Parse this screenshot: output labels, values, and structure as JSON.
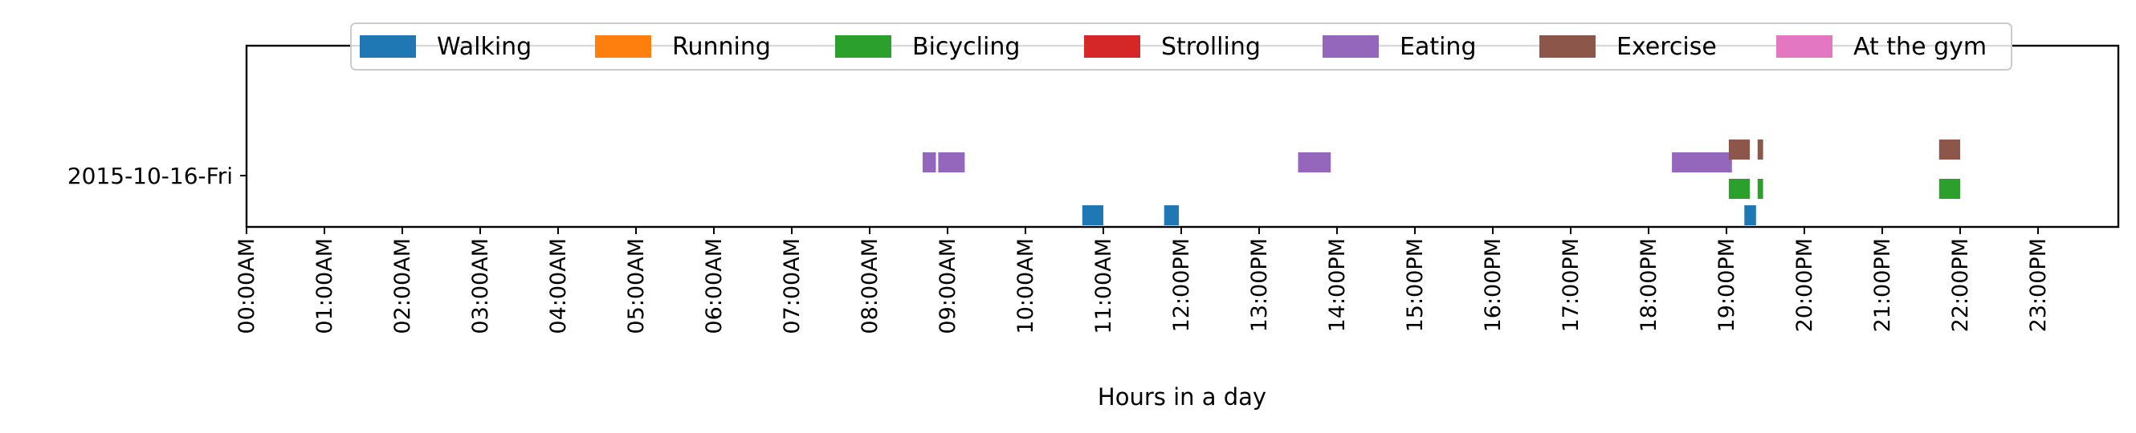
{
  "chart_data": {
    "type": "timeline",
    "title": "",
    "xlabel": "Hours in a day",
    "ylabel": "",
    "xlim": [
      0,
      24
    ],
    "grid": false,
    "legend_placement": "top-center",
    "row_label": "2015-10-16-Fri",
    "x_ticks": [
      "00:00AM",
      "01:00AM",
      "02:00AM",
      "03:00AM",
      "04:00AM",
      "05:00AM",
      "06:00AM",
      "07:00AM",
      "08:00AM",
      "09:00AM",
      "10:00AM",
      "11:00AM",
      "12:00PM",
      "13:00PM",
      "14:00PM",
      "15:00PM",
      "16:00PM",
      "17:00PM",
      "18:00PM",
      "19:00PM",
      "20:00PM",
      "21:00PM",
      "22:00PM",
      "23:00PM"
    ],
    "categories": [
      {
        "name": "Walking",
        "color": "#1f77b4"
      },
      {
        "name": "Running",
        "color": "#ff7f0e"
      },
      {
        "name": "Bicycling",
        "color": "#2ca02c"
      },
      {
        "name": "Strolling",
        "color": "#d62728"
      },
      {
        "name": "Eating",
        "color": "#9467bd"
      },
      {
        "name": "Exercise",
        "color": "#8c564b"
      },
      {
        "name": "At the gym",
        "color": "#e377c2"
      }
    ],
    "series": [
      {
        "name": "Walking",
        "intervals": [
          [
            10.73,
            11.0
          ],
          [
            11.78,
            11.97
          ],
          [
            19.23,
            19.38
          ]
        ]
      },
      {
        "name": "Running",
        "intervals": []
      },
      {
        "name": "Bicycling",
        "intervals": [
          [
            19.03,
            19.3
          ],
          [
            19.4,
            19.47
          ],
          [
            21.73,
            22.0
          ]
        ]
      },
      {
        "name": "Strolling",
        "intervals": []
      },
      {
        "name": "Eating",
        "intervals": [
          [
            8.68,
            8.85
          ],
          [
            8.88,
            9.22
          ],
          [
            13.5,
            13.92
          ],
          [
            18.3,
            19.07
          ]
        ]
      },
      {
        "name": "Exercise",
        "intervals": [
          [
            19.03,
            19.3
          ],
          [
            19.4,
            19.47
          ],
          [
            21.73,
            22.0
          ]
        ]
      },
      {
        "name": "At the gym",
        "intervals": []
      }
    ]
  }
}
